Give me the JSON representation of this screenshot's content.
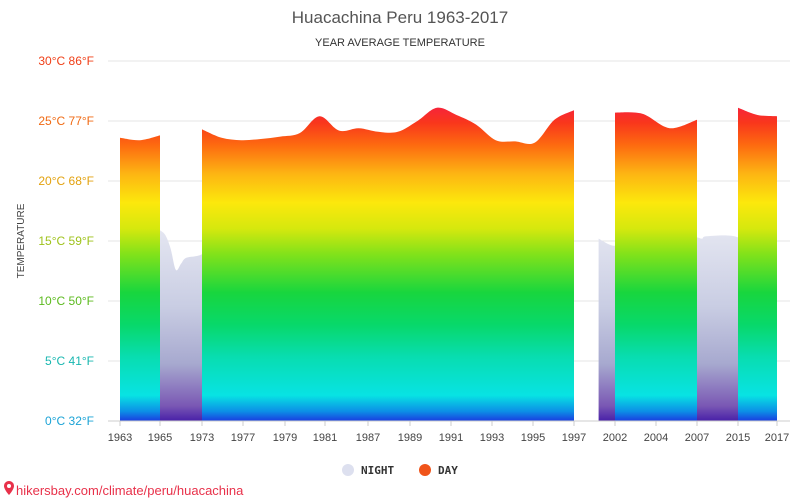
{
  "chart_data": {
    "type": "area",
    "title": "Huacachina Peru 1963-2017",
    "subtitle": "YEAR AVERAGE TEMPERATURE",
    "ylabel": "TEMPERATURE",
    "ylim": [
      0,
      30
    ],
    "y_ticks": [
      {
        "value": 0,
        "label": "0°C 32°F",
        "color": "#1ba3d6"
      },
      {
        "value": 5,
        "label": "5°C 41°F",
        "color": "#18b7b0"
      },
      {
        "value": 10,
        "label": "10°C 50°F",
        "color": "#5cba1e"
      },
      {
        "value": 15,
        "label": "15°C 59°F",
        "color": "#9ec21a"
      },
      {
        "value": 20,
        "label": "20°C 68°F",
        "color": "#e3a20f"
      },
      {
        "value": 25,
        "label": "25°C 77°F",
        "color": "#f06a13"
      },
      {
        "value": 30,
        "label": "30°C 86°F",
        "color": "#f03f17"
      }
    ],
    "x_ticks": [
      1963,
      1965,
      1973,
      1977,
      1979,
      1981,
      1987,
      1989,
      1991,
      1993,
      1995,
      1997,
      2002,
      2004,
      2007,
      2015,
      2017
    ],
    "series": [
      {
        "name": "NIGHT",
        "color": "#dde0ef",
        "segments": [
          [
            {
              "x": 1963,
              "y": 0
            },
            {
              "x": 1965,
              "y": 15.9
            },
            {
              "x": 1966,
              "y": 15.5
            },
            {
              "x": 1967,
              "y": 14.4
            },
            {
              "x": 1968,
              "y": 12.6
            },
            {
              "x": 1969,
              "y": 13.1
            },
            {
              "x": 1970,
              "y": 13.6
            },
            {
              "x": 1973,
              "y": 13.9
            },
            {
              "x": 1975,
              "y": 15.1
            },
            {
              "x": 1977,
              "y": 15.2
            },
            {
              "x": 1979,
              "y": 16.6
            },
            {
              "x": 1981,
              "y": 14.9
            },
            {
              "x": 1983,
              "y": 13.4
            },
            {
              "x": 1985,
              "y": 15.9
            },
            {
              "x": 1987,
              "y": 16.1
            },
            {
              "x": 1989,
              "y": 15.6
            },
            {
              "x": 1991,
              "y": 16.0
            },
            {
              "x": 1993,
              "y": 15.0
            },
            {
              "x": 1994,
              "y": 15.2
            },
            {
              "x": 1995,
              "y": 15.5
            },
            {
              "x": 1996,
              "y": 15.0
            },
            {
              "x": 1997,
              "y": 14.7
            }
          ],
          [
            {
              "x": 2000,
              "y": 15.2
            },
            {
              "x": 2002,
              "y": 14.6
            },
            {
              "x": 2003,
              "y": 15.2
            },
            {
              "x": 2004,
              "y": 16.3
            },
            {
              "x": 2005,
              "y": 16.0
            },
            {
              "x": 2006,
              "y": 15.5
            },
            {
              "x": 2007,
              "y": 15.3
            },
            {
              "x": 2008,
              "y": 15.2
            },
            {
              "x": 2009,
              "y": 15.4
            },
            {
              "x": 2015,
              "y": 15.3
            },
            {
              "x": 2016,
              "y": 13.7
            }
          ]
        ]
      },
      {
        "name": "DAY",
        "color": "#f0541a",
        "bands": [
          {
            "from": 1963,
            "to": 1965,
            "points": [
              23.6,
              23.4,
              23.8
            ]
          },
          {
            "from": 1973,
            "to": 1997,
            "points": [
              24.3,
              23.6,
              23.4,
              23.5,
              23.7,
              24.0,
              25.4,
              24.2,
              24.4,
              24.1,
              24.1,
              25.0,
              26.1,
              25.5,
              24.7,
              23.4,
              23.3,
              23.2,
              25.1,
              25.9
            ]
          },
          {
            "from": 2002,
            "to": 2007,
            "points": [
              25.7,
              25.6,
              24.4,
              25.1
            ]
          },
          {
            "from": 2015,
            "to": 2017,
            "points": [
              26.1,
              25.5,
              25.4
            ]
          }
        ]
      }
    ],
    "legend": {
      "placement": "bottom-center",
      "items": [
        "NIGHT",
        "DAY"
      ]
    },
    "grid": true
  },
  "footer": {
    "credit": "hikersbay.com/climate/peru/huacachina"
  }
}
